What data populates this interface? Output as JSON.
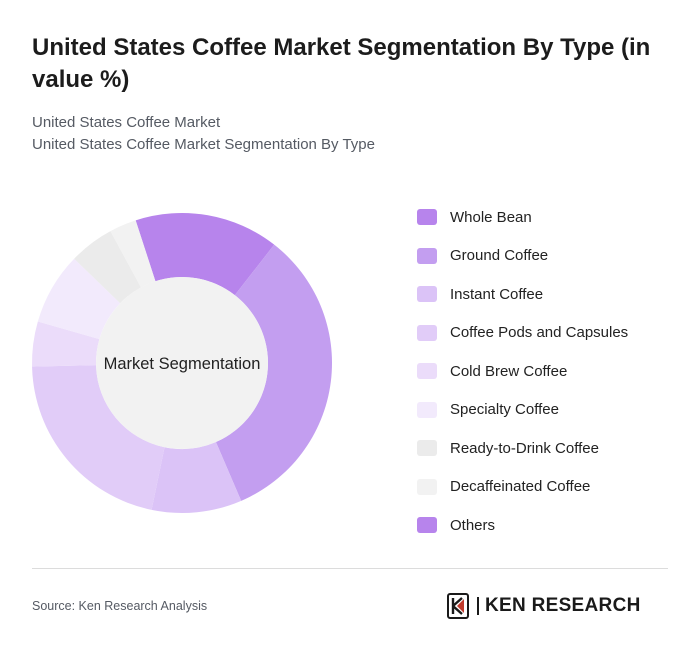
{
  "header": {
    "title": "United States Coffee Market Segmentation By Type (in value %)",
    "subtitle_line1": "United States Coffee Market",
    "subtitle_line2": "United States Coffee Market Segmentation By Type"
  },
  "chart_data": {
    "type": "pie",
    "variant": "donut",
    "center_label": "Market Segmentation",
    "legend_position": "right",
    "slices": [
      {
        "name": "Whole Bean",
        "value": 16,
        "color": "#b784ec"
      },
      {
        "name": "Ground Coffee",
        "value": 34,
        "color": "#c39ef0"
      },
      {
        "name": "Instant Coffee",
        "value": 10,
        "color": "#dbc3f7"
      },
      {
        "name": "Coffee Pods and Capsules",
        "value": 22,
        "color": "#e1ccf8"
      },
      {
        "name": "Cold Brew Coffee",
        "value": 5,
        "color": "#ebdcfa"
      },
      {
        "name": "Specialty Coffee",
        "value": 8,
        "color": "#f2eafc"
      },
      {
        "name": "Ready-to-Drink Coffee",
        "value": 5,
        "color": "#ebebeb"
      },
      {
        "name": "Decaffeinated Coffee",
        "value": 3,
        "color": "#f2f2f2"
      },
      {
        "name": "Others",
        "value": 0,
        "color": "#b784ec"
      }
    ]
  },
  "footer": {
    "source": "Source: Ken Research Analysis",
    "logo_text": "KEN RESEARCH"
  }
}
